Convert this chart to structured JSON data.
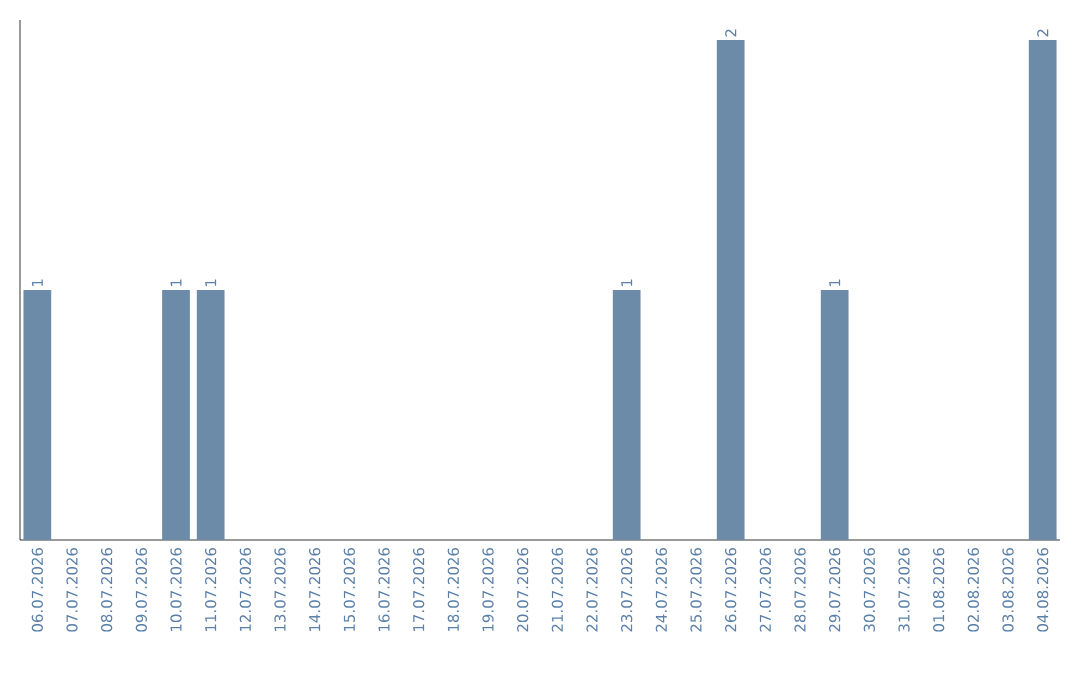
{
  "chart_data": {
    "type": "bar",
    "categories": [
      "06.07.2026",
      "07.07.2026",
      "08.07.2026",
      "09.07.2026",
      "10.07.2026",
      "11.07.2026",
      "12.07.2026",
      "13.07.2026",
      "14.07.2026",
      "15.07.2026",
      "16.07.2026",
      "17.07.2026",
      "18.07.2026",
      "19.07.2026",
      "20.07.2026",
      "21.07.2026",
      "22.07.2026",
      "23.07.2026",
      "24.07.2026",
      "25.07.2026",
      "26.07.2026",
      "27.07.2026",
      "28.07.2026",
      "29.07.2026",
      "30.07.2026",
      "31.07.2026",
      "01.08.2026",
      "02.08.2026",
      "03.08.2026",
      "04.08.2026"
    ],
    "values": [
      1,
      0,
      0,
      0,
      1,
      1,
      0,
      0,
      0,
      0,
      0,
      0,
      0,
      0,
      0,
      0,
      0,
      1,
      0,
      0,
      2,
      0,
      0,
      1,
      0,
      0,
      0,
      0,
      0,
      2
    ],
    "value_labels": [
      "1",
      null,
      null,
      null,
      "1",
      "1",
      null,
      null,
      null,
      null,
      null,
      null,
      null,
      null,
      null,
      null,
      null,
      "1",
      null,
      null,
      "2",
      null,
      null,
      "1",
      null,
      null,
      null,
      null,
      null,
      "2"
    ],
    "color": "#6b8ba8",
    "ylim": [
      0,
      2.08
    ],
    "tick_labels": "x"
  }
}
